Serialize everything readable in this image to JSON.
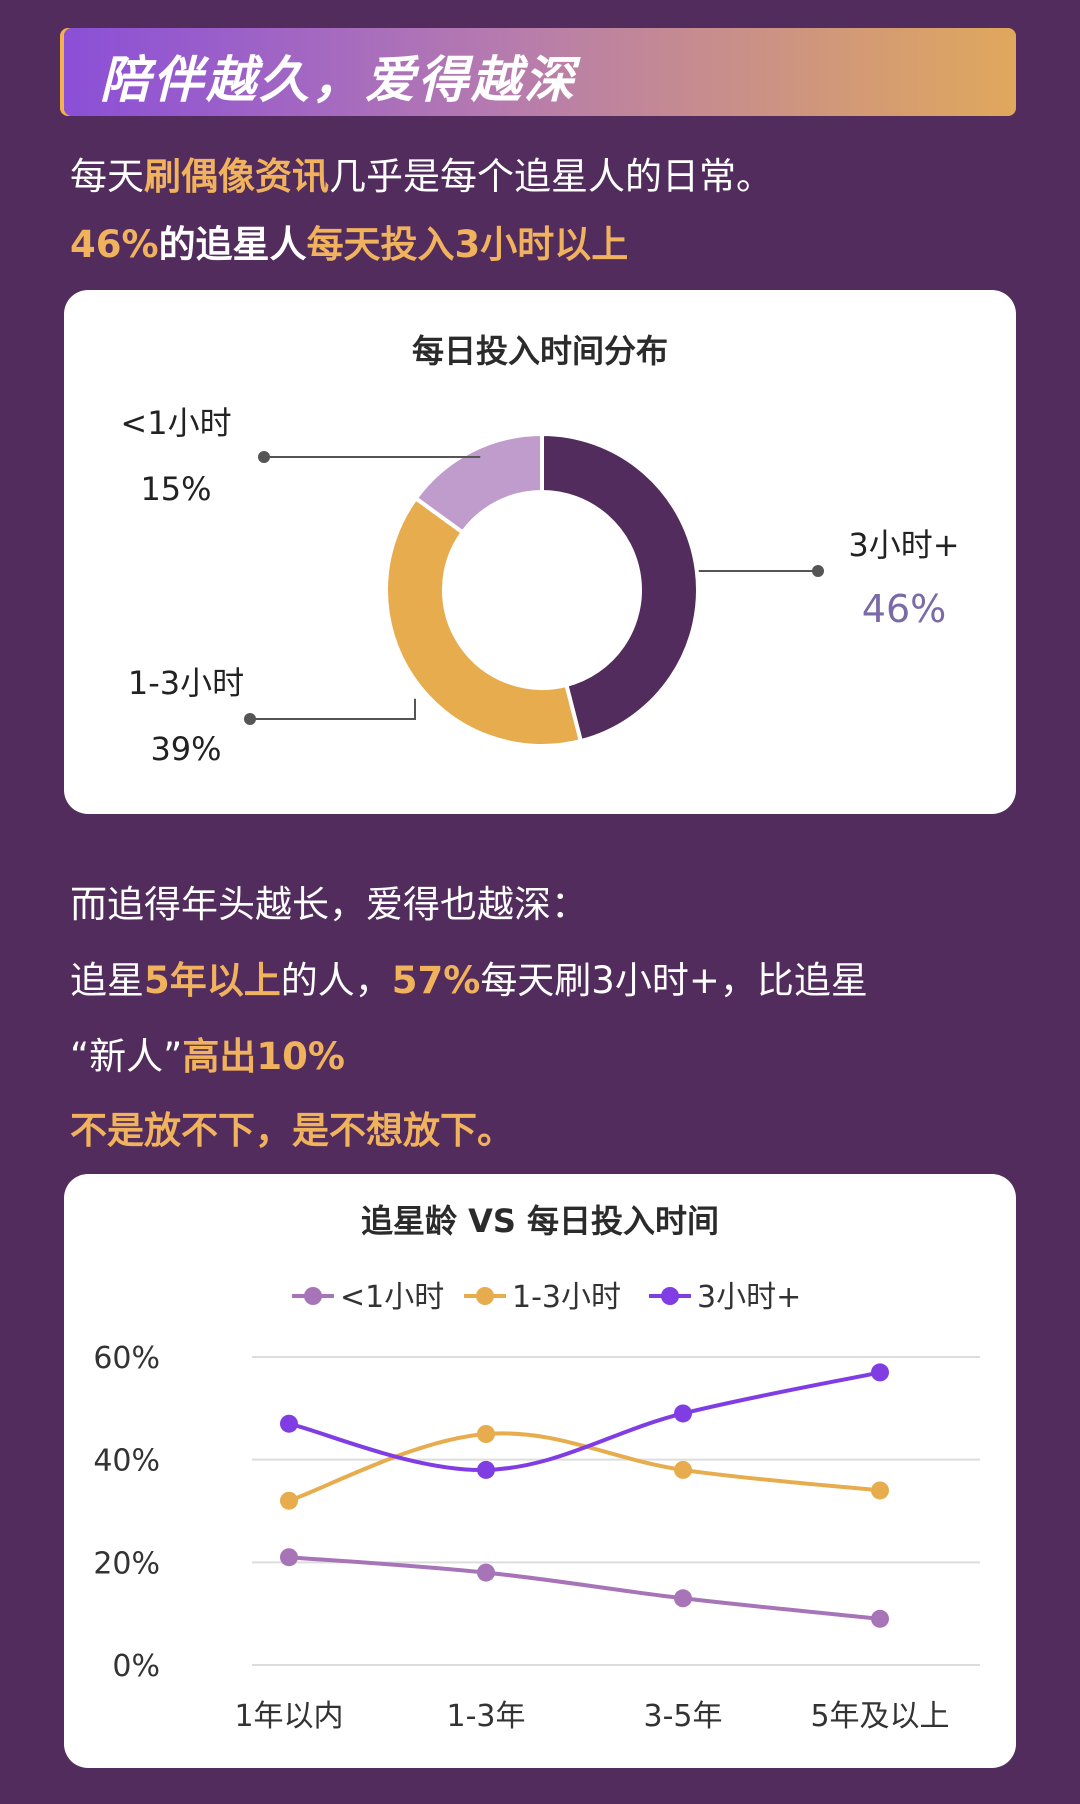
{
  "banner": {
    "title": "陪伴越久，爱得越深"
  },
  "intro": {
    "line1": [
      "每天",
      "刷偶像资讯",
      "几乎是每个追星人的日常。"
    ],
    "line2": [
      "46%",
      "的追星人",
      "每天投入3小时以上"
    ]
  },
  "middle": {
    "line1": "而追得年头越长，爱得也越深：",
    "line2": [
      "追星",
      "5年以上",
      "的人，",
      "57%",
      "每天刷3小时+，比追星"
    ],
    "line3": [
      "“新人”",
      "高出10%"
    ],
    "line4": "不是放不下，是不想放下。"
  },
  "colors": {
    "background": "#522c5c",
    "dark_purple": "#522c5c",
    "light_purple": "#bf9ccc",
    "orange": "#e7ac4e",
    "violet": "#7f3de3",
    "lavender": "#a874b8",
    "accent_text": "#f0b25c",
    "value_46": "#7a6aa8"
  },
  "chart_data": [
    {
      "type": "pie",
      "title": "每日投入时间分布",
      "labels": [
        "3小时+",
        "1-3小时",
        "<1小时"
      ],
      "values": [
        46,
        39,
        15
      ],
      "value_labels": [
        "46%",
        "39%",
        "15%"
      ],
      "style": "donut"
    },
    {
      "type": "line",
      "title": "追星龄 VS 每日投入时间",
      "categories": [
        "1年以内",
        "1-3年",
        "3-5年",
        "5年及以上"
      ],
      "series": [
        {
          "name": "<1小时",
          "values": [
            21,
            18,
            13,
            9
          ]
        },
        {
          "name": "1-3小时",
          "values": [
            32,
            45,
            38,
            34
          ]
        },
        {
          "name": "3小时+",
          "values": [
            47,
            38,
            49,
            57
          ]
        }
      ],
      "ylim": [
        0,
        60
      ],
      "yticks": [
        "0%",
        "20%",
        "40%",
        "60%"
      ],
      "grid": true,
      "legend": "top"
    }
  ]
}
